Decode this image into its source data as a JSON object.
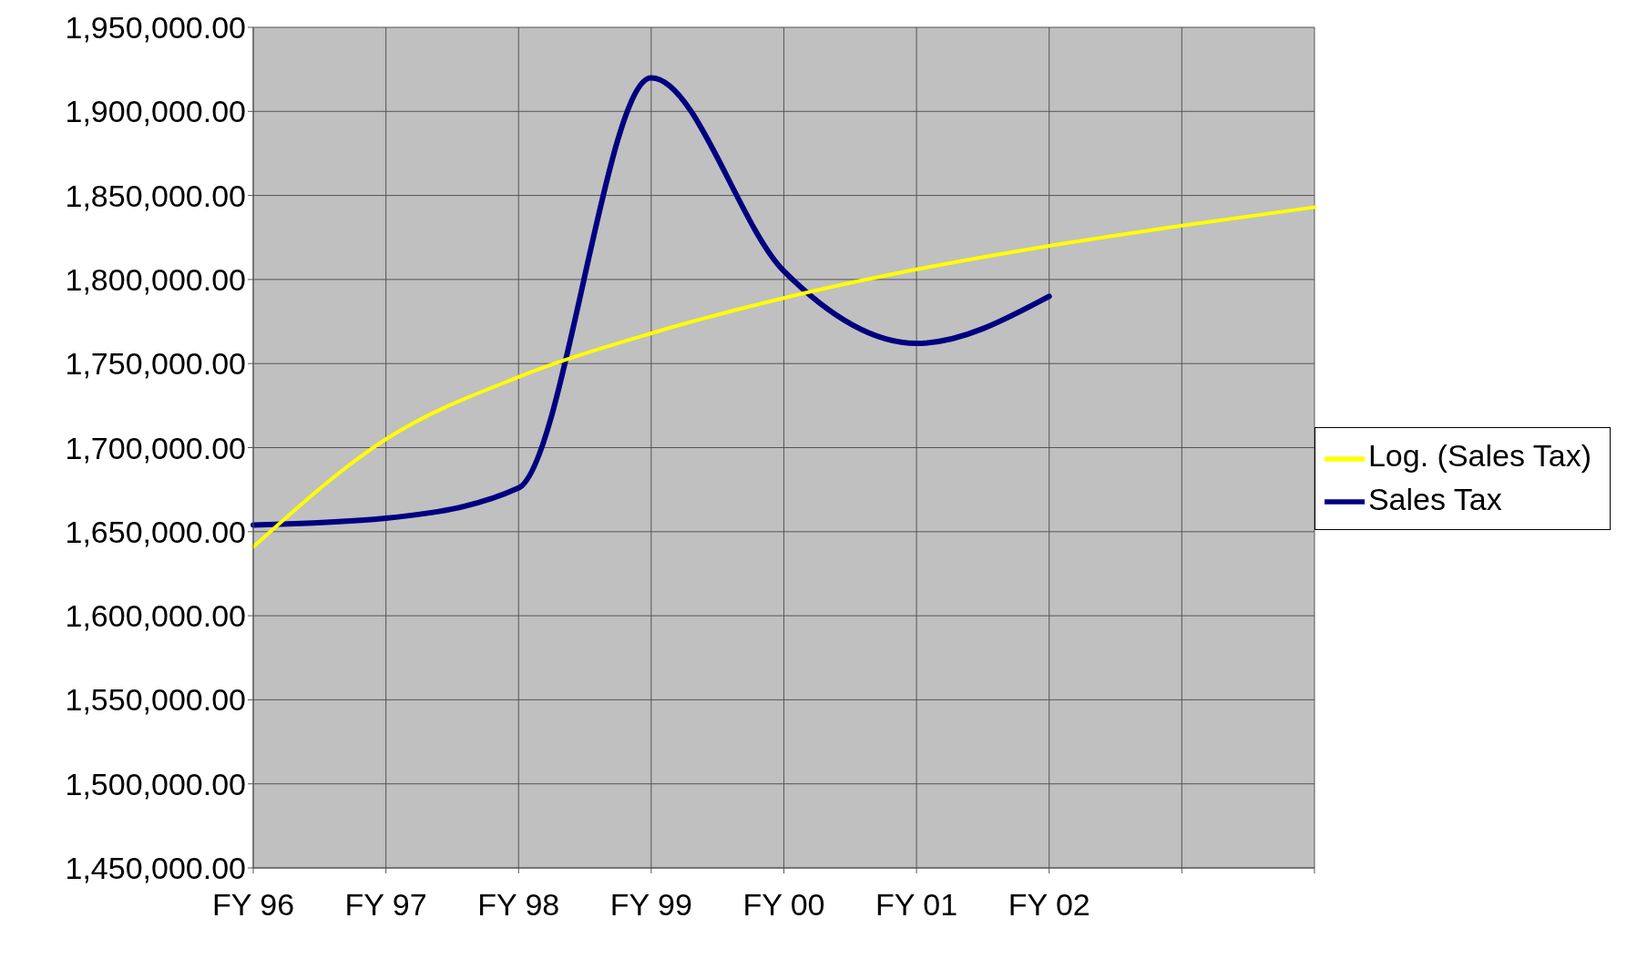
{
  "chart_data": {
    "type": "line",
    "categories": [
      "FY 96",
      "FY 97",
      "FY 98",
      "FY 99",
      "FY 00",
      "FY 01",
      "FY 02",
      null,
      null
    ],
    "series": [
      {
        "name": "Sales Tax",
        "color": "#000080",
        "values": [
          1654000,
          1658000,
          1676000,
          1920000,
          1805000,
          1762000,
          1790000,
          null,
          null
        ]
      },
      {
        "name": "Log. (Sales Tax)",
        "color": "#ffff00",
        "values": [
          1641000,
          1705000,
          1742000,
          1768000,
          1789000,
          1806000,
          1820000,
          1832000,
          1843000
        ]
      }
    ],
    "ylim": [
      1450000,
      1950000
    ],
    "yticks": [
      {
        "value": 1450000,
        "label": "1,450,000.00"
      },
      {
        "value": 1500000,
        "label": "1,500,000.00"
      },
      {
        "value": 1550000,
        "label": "1,550,000.00"
      },
      {
        "value": 1600000,
        "label": "1,600,000.00"
      },
      {
        "value": 1650000,
        "label": "1,650,000.00"
      },
      {
        "value": 1700000,
        "label": "1,700,000.00"
      },
      {
        "value": 1750000,
        "label": "1,750,000.00"
      },
      {
        "value": 1800000,
        "label": "1,800,000.00"
      },
      {
        "value": 1850000,
        "label": "1,850,000.00"
      },
      {
        "value": 1900000,
        "label": "1,900,000.00"
      },
      {
        "value": 1950000,
        "label": "1,950,000.00"
      }
    ],
    "grid": true,
    "legend": "right",
    "marker": "none",
    "line_style": "solid"
  }
}
